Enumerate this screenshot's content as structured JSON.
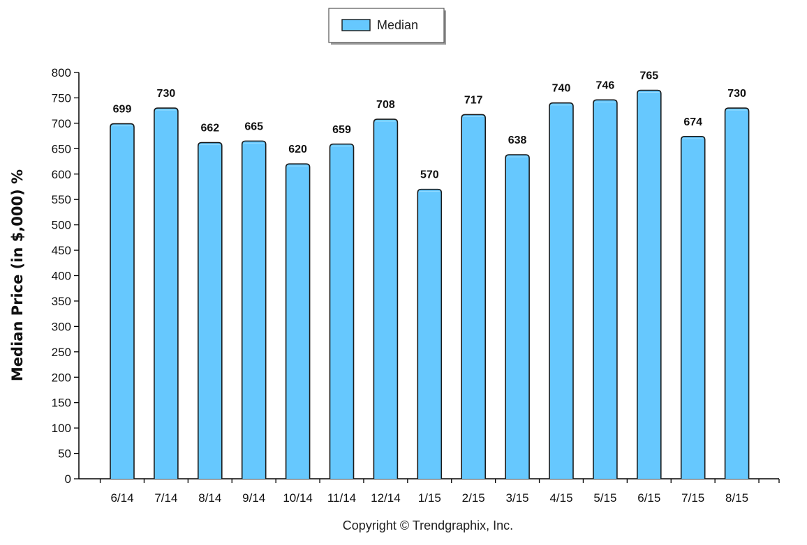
{
  "chart_data": {
    "type": "bar",
    "categories": [
      "6/14",
      "7/14",
      "8/14",
      "9/14",
      "10/14",
      "11/14",
      "12/14",
      "1/15",
      "2/15",
      "3/15",
      "4/15",
      "5/15",
      "6/15",
      "7/15",
      "8/15"
    ],
    "series": [
      {
        "name": "Median",
        "values": [
          699,
          730,
          662,
          665,
          620,
          659,
          708,
          570,
          717,
          638,
          740,
          746,
          765,
          674,
          730
        ]
      }
    ],
    "ylabel": "Median Price (in $,000) %",
    "xlabel": "",
    "ylim": [
      0,
      800
    ],
    "yticks": [
      0,
      50,
      100,
      150,
      200,
      250,
      300,
      350,
      400,
      450,
      500,
      550,
      600,
      650,
      700,
      750,
      800
    ],
    "grid": false,
    "legend_position": "top-center"
  },
  "colors": {
    "bar_fill": "#66c8fe",
    "bar_stroke": "#1a1a1a",
    "axis": "#000000"
  },
  "footer": {
    "copyright": "Copyright © Trendgraphix, Inc."
  }
}
